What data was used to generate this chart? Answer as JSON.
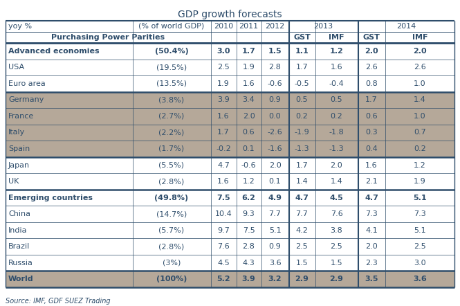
{
  "title": "GDP growth forecasts",
  "source": "Source: IMF, GDF SUEZ Trading",
  "rows": [
    {
      "label": "Advanced economies",
      "pct": "(50.4%)",
      "vals": [
        "3.0",
        "1.7",
        "1.5",
        "1.1",
        "1.2",
        "2.0",
        "2.0"
      ],
      "bold": true,
      "bg": "white",
      "thick_top": true
    },
    {
      "label": "USA",
      "pct": "(19.5%)",
      "vals": [
        "2.5",
        "1.9",
        "2.8",
        "1.7",
        "1.6",
        "2.6",
        "2.6"
      ],
      "bold": false,
      "bg": "white",
      "thick_top": false
    },
    {
      "label": "Euro area",
      "pct": "(13.5%)",
      "vals": [
        "1.9",
        "1.6",
        "-0.6",
        "-0.5",
        "-0.4",
        "0.8",
        "1.0"
      ],
      "bold": false,
      "bg": "white",
      "thick_top": false
    },
    {
      "label": "Germany",
      "pct": "(3.8%)",
      "vals": [
        "3.9",
        "3.4",
        "0.9",
        "0.5",
        "0.5",
        "1.7",
        "1.4"
      ],
      "bold": false,
      "bg": "tan",
      "thick_top": true
    },
    {
      "label": "France",
      "pct": "(2.7%)",
      "vals": [
        "1.6",
        "2.0",
        "0.0",
        "0.2",
        "0.2",
        "0.6",
        "1.0"
      ],
      "bold": false,
      "bg": "tan",
      "thick_top": false
    },
    {
      "label": "Italy",
      "pct": "(2.2%)",
      "vals": [
        "1.7",
        "0.6",
        "-2.6",
        "-1.9",
        "-1.8",
        "0.3",
        "0.7"
      ],
      "bold": false,
      "bg": "tan",
      "thick_top": false
    },
    {
      "label": "Spain",
      "pct": "(1.7%)",
      "vals": [
        "-0.2",
        "0.1",
        "-1.6",
        "-1.3",
        "-1.3",
        "0.4",
        "0.2"
      ],
      "bold": false,
      "bg": "tan",
      "thick_top": false
    },
    {
      "label": "Japan",
      "pct": "(5.5%)",
      "vals": [
        "4.7",
        "-0.6",
        "2.0",
        "1.7",
        "2.0",
        "1.6",
        "1.2"
      ],
      "bold": false,
      "bg": "white",
      "thick_top": true
    },
    {
      "label": "UK",
      "pct": "(2.8%)",
      "vals": [
        "1.6",
        "1.2",
        "0.1",
        "1.4",
        "1.4",
        "2.1",
        "1.9"
      ],
      "bold": false,
      "bg": "white",
      "thick_top": false
    },
    {
      "label": "Emerging countries",
      "pct": "(49.8%)",
      "vals": [
        "7.5",
        "6.2",
        "4.9",
        "4.7",
        "4.5",
        "4.7",
        "5.1"
      ],
      "bold": true,
      "bg": "white",
      "thick_top": true
    },
    {
      "label": "China",
      "pct": "(14.7%)",
      "vals": [
        "10.4",
        "9.3",
        "7.7",
        "7.7",
        "7.6",
        "7.3",
        "7.3"
      ],
      "bold": false,
      "bg": "white",
      "thick_top": false
    },
    {
      "label": "India",
      "pct": "(5.7%)",
      "vals": [
        "9.7",
        "7.5",
        "5.1",
        "4.2",
        "3.8",
        "4.1",
        "5.1"
      ],
      "bold": false,
      "bg": "white",
      "thick_top": false
    },
    {
      "label": "Brazil",
      "pct": "(2.8%)",
      "vals": [
        "7.6",
        "2.8",
        "0.9",
        "2.5",
        "2.5",
        "2.0",
        "2.5"
      ],
      "bold": false,
      "bg": "white",
      "thick_top": false
    },
    {
      "label": "Russia",
      "pct": "(3%)",
      "vals": [
        "4.5",
        "4.3",
        "3.6",
        "1.5",
        "1.5",
        "2.3",
        "3.0"
      ],
      "bold": false,
      "bg": "white",
      "thick_top": false
    },
    {
      "label": "World",
      "pct": "(100%)",
      "vals": [
        "5.2",
        "3.9",
        "3.2",
        "2.9",
        "2.9",
        "3.5",
        "3.6"
      ],
      "bold": true,
      "bg": "tan",
      "thick_top": true
    }
  ],
  "tan_bg": "#b5a899",
  "white_bg": "#ffffff",
  "border_color": "#2e4d6b",
  "text_color": "#2e4d6b",
  "title_fontsize": 10,
  "header_fontsize": 8,
  "data_fontsize": 8,
  "source_fontsize": 7
}
